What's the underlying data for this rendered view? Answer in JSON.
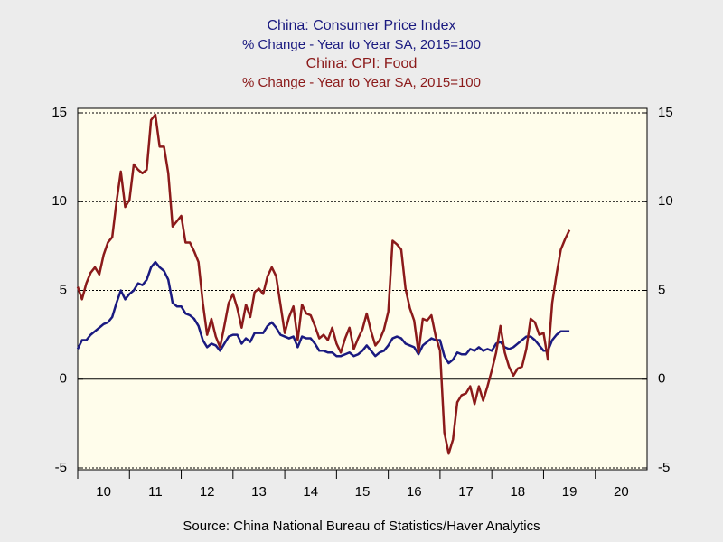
{
  "chart_data": {
    "type": "line",
    "titles": [
      {
        "text": "China: Consumer Price Index",
        "color": "#1a1a80"
      },
      {
        "text": "% Change - Year to Year    SA, 2015=100",
        "color": "#1a1a80"
      },
      {
        "text": "China: CPI: Food",
        "color": "#8b1a1a"
      },
      {
        "text": "% Change - Year to Year    SA, 2015=100",
        "color": "#8b1a1a"
      }
    ],
    "source": "Source:  China National Bureau of Statistics/Haver Analytics",
    "xlim": [
      2010,
      2021
    ],
    "xticks": [
      {
        "value": 2010.5,
        "label": "10"
      },
      {
        "value": 2011.5,
        "label": "11"
      },
      {
        "value": 2012.5,
        "label": "12"
      },
      {
        "value": 2013.5,
        "label": "13"
      },
      {
        "value": 2014.5,
        "label": "14"
      },
      {
        "value": 2015.5,
        "label": "15"
      },
      {
        "value": 2016.5,
        "label": "16"
      },
      {
        "value": 2017.5,
        "label": "17"
      },
      {
        "value": 2018.5,
        "label": "18"
      },
      {
        "value": 2019.5,
        "label": "19"
      },
      {
        "value": 2020.5,
        "label": "20"
      }
    ],
    "ylim": [
      -5,
      15
    ],
    "yticks": [
      -5,
      0,
      5,
      10,
      15
    ],
    "grid": true,
    "x": [
      2010,
      2010.083,
      2010.167,
      2010.25,
      2010.333,
      2010.417,
      2010.5,
      2010.583,
      2010.667,
      2010.75,
      2010.833,
      2010.917,
      2011,
      2011.083,
      2011.167,
      2011.25,
      2011.333,
      2011.417,
      2011.5,
      2011.583,
      2011.667,
      2011.75,
      2011.833,
      2011.917,
      2012,
      2012.083,
      2012.167,
      2012.25,
      2012.333,
      2012.417,
      2012.5,
      2012.583,
      2012.667,
      2012.75,
      2012.833,
      2012.917,
      2013,
      2013.083,
      2013.167,
      2013.25,
      2013.333,
      2013.417,
      2013.5,
      2013.583,
      2013.667,
      2013.75,
      2013.833,
      2013.917,
      2014,
      2014.083,
      2014.167,
      2014.25,
      2014.333,
      2014.417,
      2014.5,
      2014.583,
      2014.667,
      2014.75,
      2014.833,
      2014.917,
      2015,
      2015.083,
      2015.167,
      2015.25,
      2015.333,
      2015.417,
      2015.5,
      2015.583,
      2015.667,
      2015.75,
      2015.833,
      2015.917,
      2016,
      2016.083,
      2016.167,
      2016.25,
      2016.333,
      2016.417,
      2016.5,
      2016.583,
      2016.667,
      2016.75,
      2016.833,
      2016.917,
      2017,
      2017.083,
      2017.167,
      2017.25,
      2017.333,
      2017.417,
      2017.5,
      2017.583,
      2017.667,
      2017.75,
      2017.833,
      2017.917,
      2018,
      2018.083,
      2018.167,
      2018.25,
      2018.333,
      2018.417,
      2018.5,
      2018.583,
      2018.667,
      2018.75,
      2018.833,
      2018.917,
      2019,
      2019.083,
      2019.167,
      2019.25,
      2019.333,
      2019.417,
      2019.5
    ],
    "series": [
      {
        "name": "China: Consumer Price Index",
        "color": "#1a1a80",
        "values": [
          1.7,
          2.2,
          2.2,
          2.5,
          2.7,
          2.9,
          3.1,
          3.2,
          3.5,
          4.3,
          5.0,
          4.5,
          4.8,
          5.0,
          5.4,
          5.3,
          5.6,
          6.3,
          6.6,
          6.3,
          6.1,
          5.6,
          4.3,
          4.1,
          4.1,
          3.7,
          3.6,
          3.4,
          3.0,
          2.2,
          1.8,
          2.0,
          1.9,
          1.6,
          2.0,
          2.4,
          2.5,
          2.5,
          2.0,
          2.3,
          2.1,
          2.6,
          2.6,
          2.6,
          3.0,
          3.2,
          2.9,
          2.5,
          2.4,
          2.3,
          2.4,
          1.8,
          2.4,
          2.3,
          2.3,
          2.0,
          1.6,
          1.6,
          1.5,
          1.5,
          1.3,
          1.3,
          1.4,
          1.5,
          1.3,
          1.4,
          1.6,
          1.9,
          1.6,
          1.3,
          1.5,
          1.6,
          1.9,
          2.3,
          2.4,
          2.3,
          2.0,
          1.9,
          1.8,
          1.4,
          1.9,
          2.1,
          2.3,
          2.2,
          2.2,
          1.3,
          0.9,
          1.1,
          1.5,
          1.4,
          1.4,
          1.7,
          1.6,
          1.8,
          1.6,
          1.7,
          1.6,
          2.0,
          2.1,
          1.8,
          1.7,
          1.8,
          2.0,
          2.2,
          2.4,
          2.4,
          2.2,
          1.9,
          1.6,
          1.6,
          2.2,
          2.5,
          2.7,
          2.7,
          2.7
        ]
      },
      {
        "name": "China: CPI: Food",
        "color": "#8b1a1a",
        "values": [
          5.2,
          4.5,
          5.4,
          6.0,
          6.3,
          5.9,
          7.0,
          7.7,
          8.0,
          10.0,
          11.7,
          9.7,
          10.1,
          12.1,
          11.8,
          11.6,
          11.8,
          14.6,
          14.9,
          13.1,
          13.1,
          11.6,
          8.6,
          8.9,
          9.2,
          7.7,
          7.7,
          7.2,
          6.6,
          4.3,
          2.5,
          3.4,
          2.4,
          1.8,
          3.0,
          4.3,
          4.8,
          4.0,
          2.9,
          4.2,
          3.5,
          4.9,
          5.1,
          4.8,
          5.8,
          6.3,
          5.8,
          4.2,
          2.6,
          3.5,
          4.1,
          2.2,
          4.2,
          3.7,
          3.6,
          3.0,
          2.3,
          2.5,
          2.2,
          2.9,
          2.0,
          1.5,
          2.3,
          2.9,
          1.7,
          2.3,
          2.8,
          3.7,
          2.7,
          1.9,
          2.2,
          2.8,
          3.8,
          7.8,
          7.6,
          7.3,
          5.1,
          4.0,
          3.3,
          1.5,
          3.4,
          3.3,
          3.6,
          2.4,
          1.6,
          -3.0,
          -4.2,
          -3.4,
          -1.3,
          -0.9,
          -0.8,
          -0.4,
          -1.4,
          -0.4,
          -1.2,
          -0.4,
          0.5,
          1.5,
          3.0,
          1.5,
          0.7,
          0.2,
          0.6,
          0.7,
          1.7,
          3.4,
          3.2,
          2.5,
          2.6,
          1.1,
          4.3,
          5.9,
          7.3,
          7.9,
          8.4
        ]
      }
    ]
  }
}
